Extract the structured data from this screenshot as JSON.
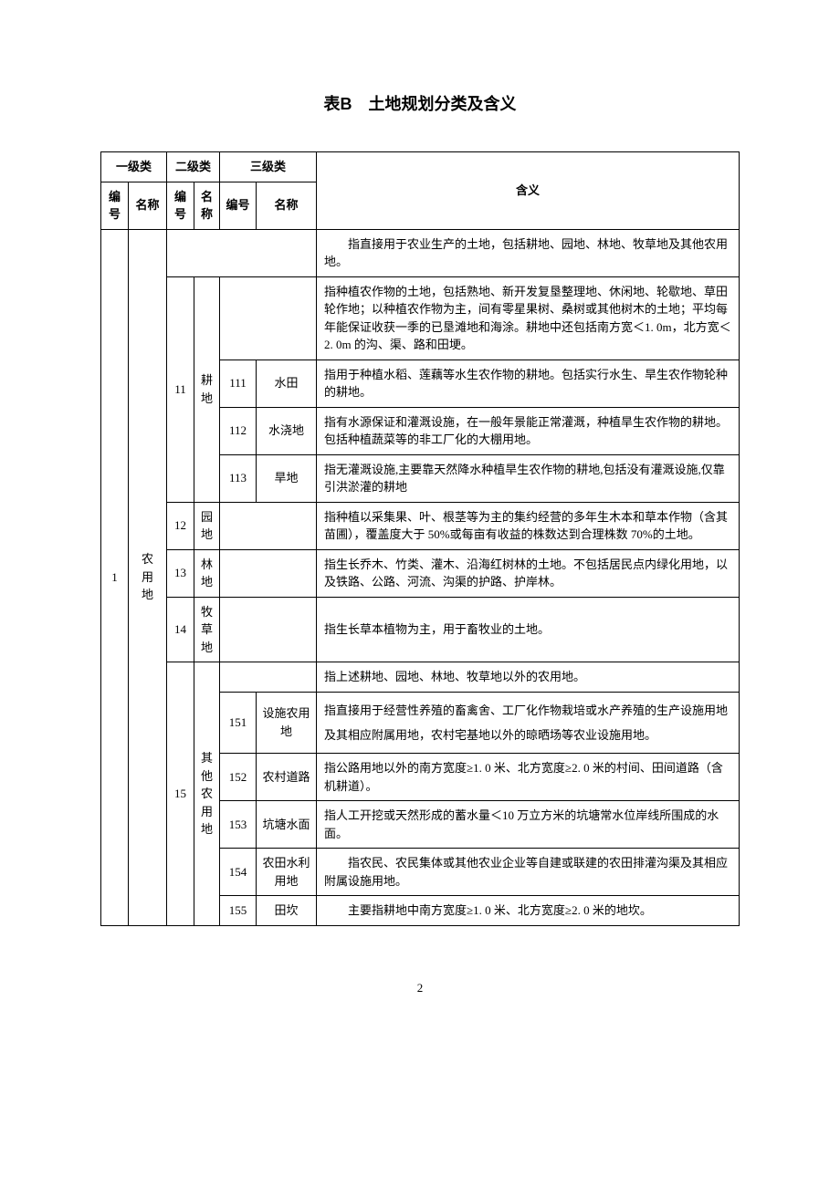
{
  "title": "表B　土地规划分类及含义",
  "headers": {
    "level1": "一级类",
    "level2": "二级类",
    "level3": "三级类",
    "code": "编号",
    "name": "名称",
    "meaning": "含义"
  },
  "level1": {
    "code": "1",
    "name": "农用地"
  },
  "row_top": "　　指直接用于农业生产的土地，包括耕地、园地、林地、牧草地及其他农用地。",
  "l2_11": {
    "code": "11",
    "name": "耕地",
    "desc": "指种植农作物的土地，包括熟地、新开发复垦整理地、休闲地、轮歇地、草田轮作地；以种植农作物为主，间有零星果树、桑树或其他树木的土地；平均每年能保证收获一季的已垦滩地和海涂。耕地中还包括南方宽＜1. 0m，北方宽＜2. 0m 的沟、渠、路和田埂。"
  },
  "r111": {
    "code": "111",
    "name": "水田",
    "desc": "指用于种植水稻、莲藕等水生农作物的耕地。包括实行水生、旱生农作物轮种的耕地。"
  },
  "r112": {
    "code": "112",
    "name": "水浇地",
    "desc": "指有水源保证和灌溉设施，在一般年景能正常灌溉，种植旱生农作物的耕地。包括种植蔬菜等的非工厂化的大棚用地。"
  },
  "r113": {
    "code": "113",
    "name": "旱地",
    "desc": "指无灌溉设施,主要靠天然降水种植旱生农作物的耕地,包括没有灌溉设施,仅靠引洪淤灌的耕地"
  },
  "l2_12": {
    "code": "12",
    "name": "园地",
    "desc": "指种植以采集果、叶、根茎等为主的集约经营的多年生木本和草本作物（含其苗圃），覆盖度大于 50%或每亩有收益的株数达到合理株数 70%的土地。"
  },
  "l2_13": {
    "code": "13",
    "name": "林地",
    "desc": "指生长乔木、竹类、灌木、沿海红树林的土地。不包括居民点内绿化用地，以及铁路、公路、河流、沟渠的护路、护岸林。"
  },
  "l2_14": {
    "code": "14",
    "name": "牧草地",
    "desc": "指生长草本植物为主，用于畜牧业的土地。"
  },
  "l2_15": {
    "code": "15",
    "name": "其他农用地",
    "desc": "指上述耕地、园地、林地、牧草地以外的农用地。"
  },
  "r151": {
    "code": "151",
    "name": "设施农用地",
    "desc": "指直接用于经营性养殖的畜禽舍、工厂化作物栽培或水产养殖的生产设施用地及其相应附属用地，农村宅基地以外的晾晒场等农业设施用地。"
  },
  "r152": {
    "code": "152",
    "name": "农村道路",
    "desc": "指公路用地以外的南方宽度≥1. 0 米、北方宽度≥2. 0 米的村间、田间道路（含机耕道）。"
  },
  "r153": {
    "code": "153",
    "name": "坑塘水面",
    "desc": "指人工开挖或天然形成的蓄水量＜10 万立方米的坑塘常水位岸线所围成的水面。"
  },
  "r154": {
    "code": "154",
    "name": "农田水利用地",
    "desc": "　　指农民、农民集体或其他农业企业等自建或联建的农田排灌沟渠及其相应附属设施用地。"
  },
  "r155": {
    "code": "155",
    "name": "田坎",
    "desc": "　　主要指耕地中南方宽度≥1. 0 米、北方宽度≥2. 0 米的地坎。"
  },
  "page_number": "2"
}
